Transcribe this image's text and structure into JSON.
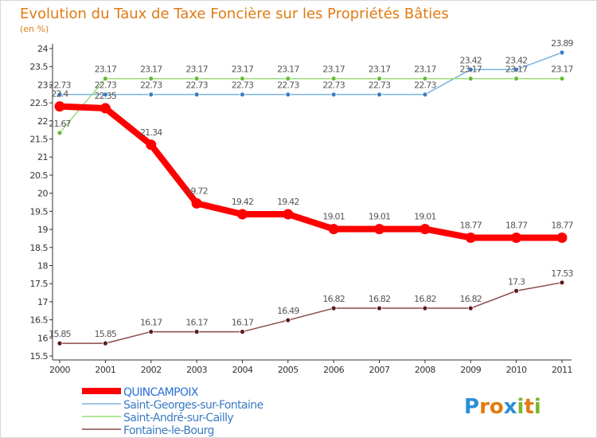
{
  "chart_data": {
    "type": "line",
    "title": "Evolution du Taux de Taxe Foncière sur les Propriétés Bâties",
    "subtitle": "(en %)",
    "categories": [
      "2000",
      "2001",
      "2002",
      "2003",
      "2004",
      "2005",
      "2006",
      "2007",
      "2008",
      "2009",
      "2010",
      "2011"
    ],
    "ylim": [
      15.5,
      24
    ],
    "ytick_step": 0.5,
    "grid": false,
    "legend_position": "bottom-left",
    "series": [
      {
        "name": "QUINCAMPOIX",
        "color": "#ff0000",
        "emphasis": true,
        "values": [
          22.4,
          22.35,
          21.34,
          19.72,
          19.42,
          19.42,
          19.01,
          19.01,
          19.01,
          18.77,
          18.77,
          18.77
        ],
        "labels": [
          "22.4",
          "22.35",
          "21.34",
          "19.72",
          "19.42",
          "19.42",
          "19.01",
          "19.01",
          "19.01",
          "18.77",
          "18.77",
          "18.77"
        ]
      },
      {
        "name": "Saint-Georges-sur-Fontaine",
        "color": "#7ab4e0",
        "marker_color": "#3a7cc4",
        "values": [
          22.73,
          22.73,
          22.73,
          22.73,
          22.73,
          22.73,
          22.73,
          22.73,
          22.73,
          23.42,
          23.42,
          23.89
        ],
        "labels": [
          "22.73",
          "22.73",
          "22.73",
          "22.73",
          "22.73",
          "22.73",
          "22.73",
          "22.73",
          "22.73",
          "23.42",
          "23.42",
          "23.89"
        ]
      },
      {
        "name": "Saint-André-sur-Cailly",
        "color": "#99dd77",
        "marker_color": "#66bb33",
        "values": [
          21.67,
          23.17,
          23.17,
          23.17,
          23.17,
          23.17,
          23.17,
          23.17,
          23.17,
          23.17,
          23.17,
          23.17
        ],
        "labels": [
          "21.67",
          "23.17",
          "23.17",
          "23.17",
          "23.17",
          "23.17",
          "23.17",
          "23.17",
          "23.17",
          "23.17",
          "23.17",
          "23.17"
        ]
      },
      {
        "name": "Fontaine-le-Bourg",
        "color": "#8b4a4a",
        "marker_color": "#5a1a1a",
        "values": [
          15.85,
          15.85,
          16.17,
          16.17,
          16.17,
          16.49,
          16.82,
          16.82,
          16.82,
          16.82,
          17.3,
          17.53
        ],
        "labels": [
          "15.85",
          "15.85",
          "16.17",
          "16.17",
          "16.17",
          "16.49",
          "16.82",
          "16.82",
          "16.82",
          "16.82",
          "17.3",
          "17.53"
        ]
      }
    ]
  },
  "logo": {
    "text": "Proxiti"
  }
}
